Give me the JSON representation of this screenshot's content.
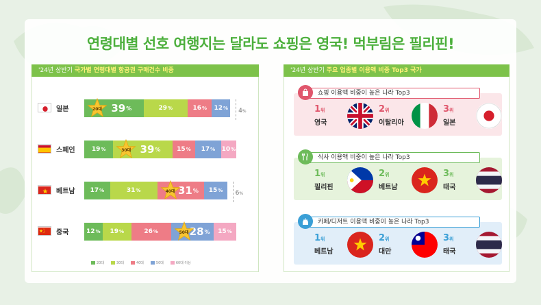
{
  "headline": "연령대별 선호 여행지는 달라도 쇼핑은 영국! 먹부림은 필리핀!",
  "left_panel": {
    "header_prefix": "'24년 상반기",
    "header_highlight": "국가별 연령대별 항공권 구매건수 비중"
  },
  "right_panel": {
    "header_prefix": "'24년 상반기",
    "header_highlight": "주요 업종별 이용액 비중 Top3 국가"
  },
  "colors": {
    "20s": "#6dbb5a",
    "30s": "#b9d84a",
    "40s": "#ee7c86",
    "50s": "#7fa3d6",
    "60s": "#f4a8c2",
    "header_green": "#7dc24a",
    "star": "#f7c531"
  },
  "chart_data": {
    "type": "bar",
    "stacked": true,
    "orientation": "horizontal",
    "categories": [
      "일본",
      "스페인",
      "베트남",
      "중국"
    ],
    "series": [
      {
        "name": "20대",
        "values": [
          39,
          19,
          17,
          12
        ]
      },
      {
        "name": "30대",
        "values": [
          29,
          39,
          31,
          19
        ]
      },
      {
        "name": "40대",
        "values": [
          16,
          15,
          31,
          26
        ]
      },
      {
        "name": "50대",
        "values": [
          12,
          17,
          15,
          28
        ]
      },
      {
        "name": "60대 이상",
        "values": [
          4,
          10,
          6,
          15
        ]
      }
    ],
    "star_labels": [
      "20대",
      "30대",
      "40대",
      "50대"
    ],
    "star_series_index": [
      0,
      1,
      2,
      3
    ],
    "pct_unit": "%"
  },
  "rankings": [
    {
      "title": "쇼핑 이용액 비중이 높은 나라 Top3",
      "icon": "shopping-bag-icon",
      "color": "#e0566c",
      "bg": "#fbe6e9",
      "items": [
        {
          "rank": "1",
          "unit": "위",
          "name": "영국",
          "flag": "uk"
        },
        {
          "rank": "2",
          "unit": "위",
          "name": "이탈리아",
          "flag": "italy"
        },
        {
          "rank": "3",
          "unit": "위",
          "name": "일본",
          "flag": "japan"
        }
      ]
    },
    {
      "title": "식사 이용액 비중이 높은 나라 Top3",
      "icon": "fork-knife-icon",
      "color": "#6dbb5a",
      "bg": "#e6f3dc",
      "items": [
        {
          "rank": "1",
          "unit": "위",
          "name": "필리핀",
          "flag": "philippines"
        },
        {
          "rank": "2",
          "unit": "위",
          "name": "베트남",
          "flag": "vietnam"
        },
        {
          "rank": "3",
          "unit": "위",
          "name": "태국",
          "flag": "thailand"
        }
      ]
    },
    {
      "title": "카페/디저트 이용액 비중이 높은 나라 Top3",
      "icon": "cake-icon",
      "color": "#3a9fd6",
      "bg": "#e1eef9",
      "items": [
        {
          "rank": "1",
          "unit": "위",
          "name": "베트남",
          "flag": "vietnam"
        },
        {
          "rank": "2",
          "unit": "위",
          "name": "대만",
          "flag": "taiwan"
        },
        {
          "rank": "3",
          "unit": "위",
          "name": "태국",
          "flag": "thailand"
        }
      ]
    }
  ]
}
